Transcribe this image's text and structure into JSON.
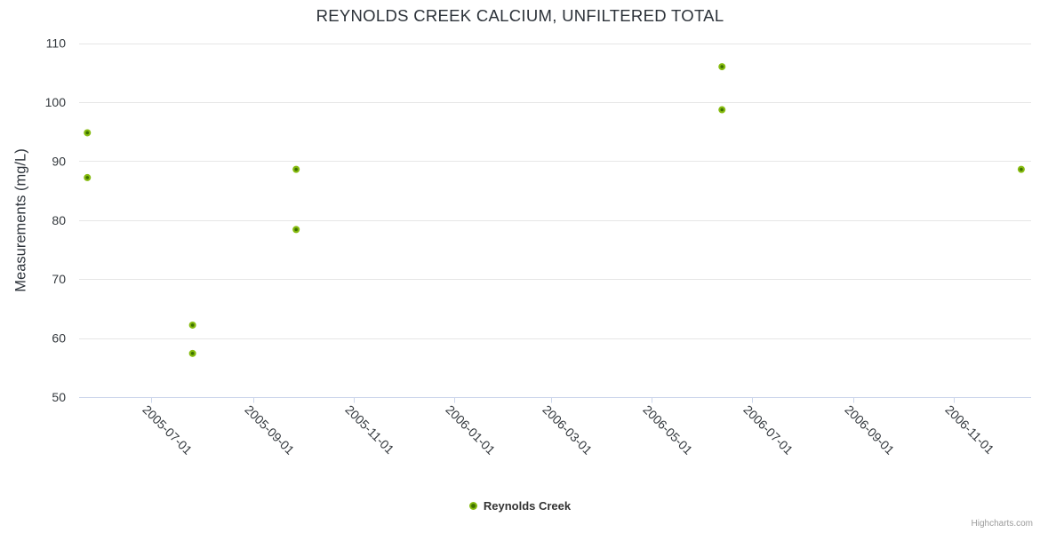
{
  "title": "REYNOLDS CREEK CALCIUM, UNFILTERED TOTAL",
  "legend": {
    "label": "Reynolds Creek"
  },
  "credits": {
    "label": "Highcharts.com"
  },
  "colors": {
    "marker_outer": "#86bb0f",
    "marker_inner": "#3e7200",
    "grid_line": "#e6e6e6",
    "axis_line": "#ccd6eb",
    "title_text": "#2c3239",
    "axis_label_text": "#33383d",
    "legend_text": "#333333",
    "credits_text": "#9b9b9b"
  },
  "chart_data": {
    "type": "scatter",
    "title": "REYNOLDS CREEK CALCIUM, UNFILTERED TOTAL",
    "xlabel": "",
    "ylabel": "Measurements (mg/L)",
    "x_type": "datetime",
    "x_range": [
      "2005-05-18",
      "2006-12-18"
    ],
    "ylim": [
      50,
      110
    ],
    "y_tick_interval": 10,
    "y_ticks": [
      110,
      100,
      90,
      80,
      70,
      60,
      50
    ],
    "x_ticks": [
      "2005-07-01",
      "2005-09-01",
      "2005-11-01",
      "2006-01-01",
      "2006-03-01",
      "2006-05-01",
      "2006-07-01",
      "2006-09-01",
      "2006-11-01"
    ],
    "grid": "horizontal-only",
    "legend_position": "bottom-center",
    "series": [
      {
        "name": "Reynolds Creek",
        "points": [
          {
            "date": "2005-05-23",
            "value": 94.8
          },
          {
            "date": "2005-05-23",
            "value": 87.2
          },
          {
            "date": "2005-07-26",
            "value": 62.2
          },
          {
            "date": "2005-07-26",
            "value": 57.4
          },
          {
            "date": "2005-09-27",
            "value": 88.6
          },
          {
            "date": "2005-09-27",
            "value": 78.4
          },
          {
            "date": "2006-06-13",
            "value": 106.0
          },
          {
            "date": "2006-06-13",
            "value": 98.7
          },
          {
            "date": "2006-12-12",
            "value": 88.6
          }
        ]
      }
    ]
  }
}
